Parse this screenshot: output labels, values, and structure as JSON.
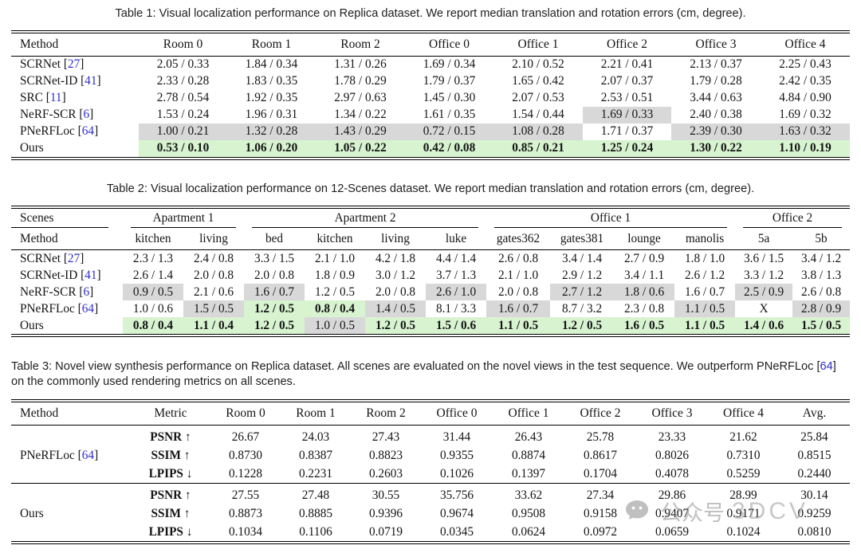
{
  "colors": {
    "gray_highlight": "#d8d8d8",
    "green_highlight": "#d7f3d0",
    "citation_blue": "#2e2ecc"
  },
  "watermark": {
    "icon": "wechat-bubble-icon",
    "cn": "公众号",
    "en": "3DCV"
  },
  "table1": {
    "caption": "Table 1: Visual localization performance on Replica dataset. We report median translation and rotation errors (cm, degree).",
    "columns": [
      "Method",
      "Room 0",
      "Room 1",
      "Room 2",
      "Office 0",
      "Office 1",
      "Office 2",
      "Office 3",
      "Office 4"
    ],
    "rows": [
      {
        "method": "SCRNet",
        "cite": "27",
        "cells": [
          "2.05 / 0.33",
          "1.84 / 0.34",
          "1.31 / 0.26",
          "1.69 / 0.34",
          "2.10 / 0.52",
          "2.21 / 0.41",
          "2.13 / 0.37",
          "2.25 / 0.43"
        ]
      },
      {
        "method": "SCRNet-ID",
        "cite": "41",
        "cells": [
          "2.33 / 0.28",
          "1.83 / 0.35",
          "1.78 / 0.29",
          "1.79 / 0.37",
          "1.65 / 0.42",
          "2.07 / 0.37",
          "1.79 / 0.28",
          "2.42 / 0.35"
        ]
      },
      {
        "method": "SRC",
        "cite": "11",
        "cells": [
          "2.78 / 0.54",
          "1.92 / 0.35",
          "2.97 / 0.63",
          "1.45 / 0.30",
          "2.07 / 0.53",
          "2.53 / 0.51",
          "3.44 / 0.63",
          "4.84 / 0.90"
        ]
      },
      {
        "method": "NeRF-SCR",
        "cite": "6",
        "cells": [
          "1.53 / 0.24",
          "1.96 / 0.31",
          "1.34 / 0.22",
          "1.61 / 0.35",
          "1.54 / 0.44",
          {
            "v": "1.69 / 0.33",
            "h": "g"
          },
          "2.40 / 0.38",
          "1.69 / 0.32"
        ]
      },
      {
        "method": "PNeRFLoc",
        "cite": "64",
        "cells": [
          {
            "v": "1.00 / 0.21",
            "h": "g"
          },
          {
            "v": "1.32 / 0.28",
            "h": "g"
          },
          {
            "v": "1.43 / 0.29",
            "h": "g"
          },
          {
            "v": "0.72 / 0.15",
            "h": "g"
          },
          {
            "v": "1.08 / 0.28",
            "h": "g"
          },
          "1.71 / 0.37",
          {
            "v": "2.39 / 0.30",
            "h": "g"
          },
          {
            "v": "1.63 / 0.32",
            "h": "g"
          }
        ]
      },
      {
        "method": "Ours",
        "cite": null,
        "cells": [
          {
            "v": "0.53 / 0.10",
            "h": "n",
            "b": true
          },
          {
            "v": "1.06 / 0.20",
            "h": "n",
            "b": true
          },
          {
            "v": "1.05 / 0.22",
            "h": "n",
            "b": true
          },
          {
            "v": "0.42 / 0.08",
            "h": "n",
            "b": true
          },
          {
            "v": "0.85 / 0.21",
            "h": "n",
            "b": true
          },
          {
            "v": "1.25 / 0.24",
            "h": "n",
            "b": true
          },
          {
            "v": "1.30 / 0.22",
            "h": "n",
            "b": true
          },
          {
            "v": "1.10 / 0.19",
            "h": "n",
            "b": true
          }
        ]
      }
    ]
  },
  "table2": {
    "caption": "Table 2: Visual localization performance on 12-Scenes dataset. We report median translation and rotation errors (cm, degree).",
    "corner_top": "Scenes",
    "corner_bottom": "Method",
    "groups": [
      {
        "label": "Apartment 1",
        "span": 2
      },
      {
        "label": "Apartment 2",
        "span": 4
      },
      {
        "label": "Office 1",
        "span": 4
      },
      {
        "label": "Office 2",
        "span": 2
      }
    ],
    "subcolumns": [
      "kitchen",
      "living",
      "bed",
      "kitchen",
      "living",
      "luke",
      "gates362",
      "gates381",
      "lounge",
      "manolis",
      "5a",
      "5b"
    ],
    "rows": [
      {
        "method": "SCRNet",
        "cite": "27",
        "cells": [
          "2.3 / 1.3",
          "2.4 / 0.8",
          "3.3 / 1.5",
          "2.1 / 1.0",
          "4.2 / 1.8",
          "4.4 / 1.4",
          "2.6 / 0.8",
          "3.4 / 1.4",
          "2.7 / 0.9",
          "1.8 / 1.0",
          "3.6 / 1.5",
          "3.4 / 1.2"
        ]
      },
      {
        "method": "SCRNet-ID",
        "cite": "41",
        "cells": [
          "2.6 / 1.4",
          "2.0 / 0.8",
          "2.0 / 0.8",
          "1.8 / 0.9",
          "3.0 / 1.2",
          "3.7 / 1.3",
          "2.1 / 1.0",
          "2.9 / 1.2",
          "3.4 / 1.1",
          "2.6 / 1.2",
          "3.3 / 1.2",
          "3.8 / 1.3"
        ]
      },
      {
        "method": "NeRF-SCR",
        "cite": "6",
        "cells": [
          {
            "v": "0.9 / 0.5",
            "h": "g"
          },
          "2.1 / 0.6",
          {
            "v": "1.6 / 0.7",
            "h": "g"
          },
          "1.2 / 0.5",
          "2.0 / 0.8",
          {
            "v": "2.6 / 1.0",
            "h": "g"
          },
          "2.0 / 0.8",
          {
            "v": "2.7 / 1.2",
            "h": "g"
          },
          {
            "v": "1.8 / 0.6",
            "h": "g"
          },
          "1.6 / 0.7",
          {
            "v": "2.5 / 0.9",
            "h": "g"
          },
          "2.6 / 0.8"
        ]
      },
      {
        "method": "PNeRFLoc",
        "cite": "64",
        "cells": [
          "1.0 / 0.6",
          {
            "v": "1.5 / 0.5",
            "h": "g"
          },
          {
            "v": "1.2 / 0.5",
            "h": "n",
            "b": true
          },
          {
            "v": "0.8 / 0.4",
            "h": "n",
            "b": true
          },
          {
            "v": "1.4 / 0.5",
            "h": "g"
          },
          "8.1 / 3.3",
          {
            "v": "1.6 / 0.7",
            "h": "g"
          },
          "8.7 / 3.2",
          "2.3 / 0.8",
          {
            "v": "1.1 / 0.5",
            "h": "g"
          },
          "X",
          {
            "v": "2.8 / 0.9",
            "h": "g"
          }
        ]
      },
      {
        "method": "Ours",
        "cite": null,
        "cells": [
          {
            "v": "0.8 / 0.4",
            "h": "n",
            "b": true
          },
          {
            "v": "1.1 / 0.4",
            "h": "n",
            "b": true
          },
          {
            "v": "1.2 / 0.5",
            "h": "n",
            "b": true
          },
          {
            "v": "1.0 / 0.5",
            "h": "g"
          },
          {
            "v": "1.2 / 0.5",
            "h": "n",
            "b": true
          },
          {
            "v": "1.5 / 0.6",
            "h": "n",
            "b": true
          },
          {
            "v": "1.1 / 0.5",
            "h": "n",
            "b": true
          },
          {
            "v": "1.2 / 0.5",
            "h": "n",
            "b": true
          },
          {
            "v": "1.6 / 0.5",
            "h": "n",
            "b": true
          },
          {
            "v": "1.1 / 0.5",
            "h": "n",
            "b": true
          },
          {
            "v": "1.4 / 0.6",
            "h": "n",
            "b": true
          },
          {
            "v": "1.5 / 0.5",
            "h": "n",
            "b": true
          }
        ]
      }
    ]
  },
  "table3": {
    "caption_pre": "Table 3: Novel view synthesis performance on Replica dataset. All scenes are evaluated on the novel views in the test sequence. We outperform PNeRFLoc [",
    "caption_cite": "64",
    "caption_post": "] on the commonly used rendering metrics on all scenes.",
    "columns": [
      "Method",
      "Metric",
      "Room 0",
      "Room 1",
      "Room 2",
      "Office 0",
      "Office 1",
      "Office 2",
      "Office 3",
      "Office 4",
      "Avg."
    ],
    "groups": [
      {
        "method": "PNeRFLoc",
        "cite": "64",
        "metrics": [
          {
            "label": "PSNR ↑",
            "values": [
              "26.67",
              "24.03",
              "27.43",
              "31.44",
              "26.43",
              "25.78",
              "23.33",
              "21.62",
              "25.84"
            ]
          },
          {
            "label": "SSIM ↑",
            "values": [
              "0.8730",
              "0.8387",
              "0.8823",
              "0.9355",
              "0.8874",
              "0.8617",
              "0.8026",
              "0.7310",
              "0.8515"
            ]
          },
          {
            "label": "LPIPS ↓",
            "values": [
              "0.1228",
              "0.2231",
              "0.2603",
              "0.1026",
              "0.1397",
              "0.1704",
              "0.4078",
              "0.5259",
              "0.2440"
            ]
          }
        ]
      },
      {
        "method": "Ours",
        "cite": null,
        "metrics": [
          {
            "label": "PSNR ↑",
            "values": [
              "27.55",
              "27.48",
              "30.55",
              "35.756",
              "33.62",
              "27.34",
              "29.86",
              "28.99",
              "30.14"
            ]
          },
          {
            "label": "SSIM ↑",
            "values": [
              "0.8873",
              "0.8885",
              "0.9396",
              "0.9674",
              "0.9508",
              "0.9158",
              "0.9407",
              "0.9171",
              "0.9259"
            ]
          },
          {
            "label": "LPIPS ↓",
            "values": [
              "0.1034",
              "0.1106",
              "0.0719",
              "0.0345",
              "0.0624",
              "0.0972",
              "0.0659",
              "0.1024",
              "0.0810"
            ]
          }
        ]
      }
    ]
  }
}
